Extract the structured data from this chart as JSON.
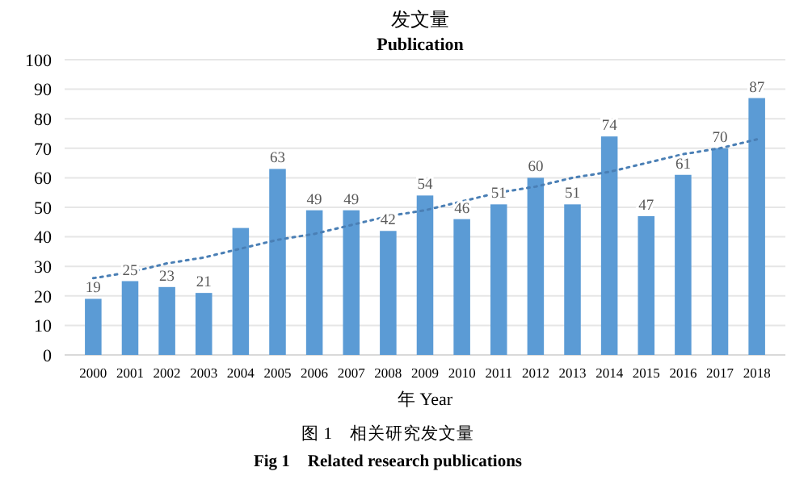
{
  "chart_data": {
    "type": "bar",
    "title": "发文量",
    "subtitle": "Publication",
    "xlabel": "年 Year",
    "annotations": [
      "图 1　相关研究发文量",
      "Fig 1　Related research publications"
    ],
    "categories": [
      "2000",
      "2001",
      "2002",
      "2003",
      "2004",
      "2005",
      "2006",
      "2007",
      "2008",
      "2009",
      "2010",
      "2011",
      "2012",
      "2013",
      "2014",
      "2015",
      "2016",
      "2017",
      "2018"
    ],
    "series": [
      {
        "color": "#5b9bd5",
        "values": [
          19,
          25,
          23,
          21,
          43,
          63,
          49,
          49,
          42,
          54,
          46,
          51,
          60,
          51,
          74,
          47,
          61,
          70,
          87
        ],
        "value_labels": [
          "19",
          "25",
          "23",
          "21",
          null,
          "63",
          "49",
          "49",
          "42",
          "54",
          "46",
          "51",
          "60",
          "51",
          "74",
          "47",
          "61",
          "70",
          "87"
        ]
      },
      {
        "type": "line",
        "color": "#4a7fb5",
        "line_style": "dotted",
        "values": [
          26,
          28,
          31,
          33,
          36,
          39,
          41,
          44,
          47,
          49,
          52,
          55,
          57,
          60,
          62,
          65,
          68,
          70,
          73
        ]
      }
    ],
    "ylim": [
      0,
      100
    ],
    "yticks": [
      0,
      10,
      20,
      30,
      40,
      50,
      60,
      70,
      80,
      90,
      100
    ],
    "grid": "y"
  }
}
